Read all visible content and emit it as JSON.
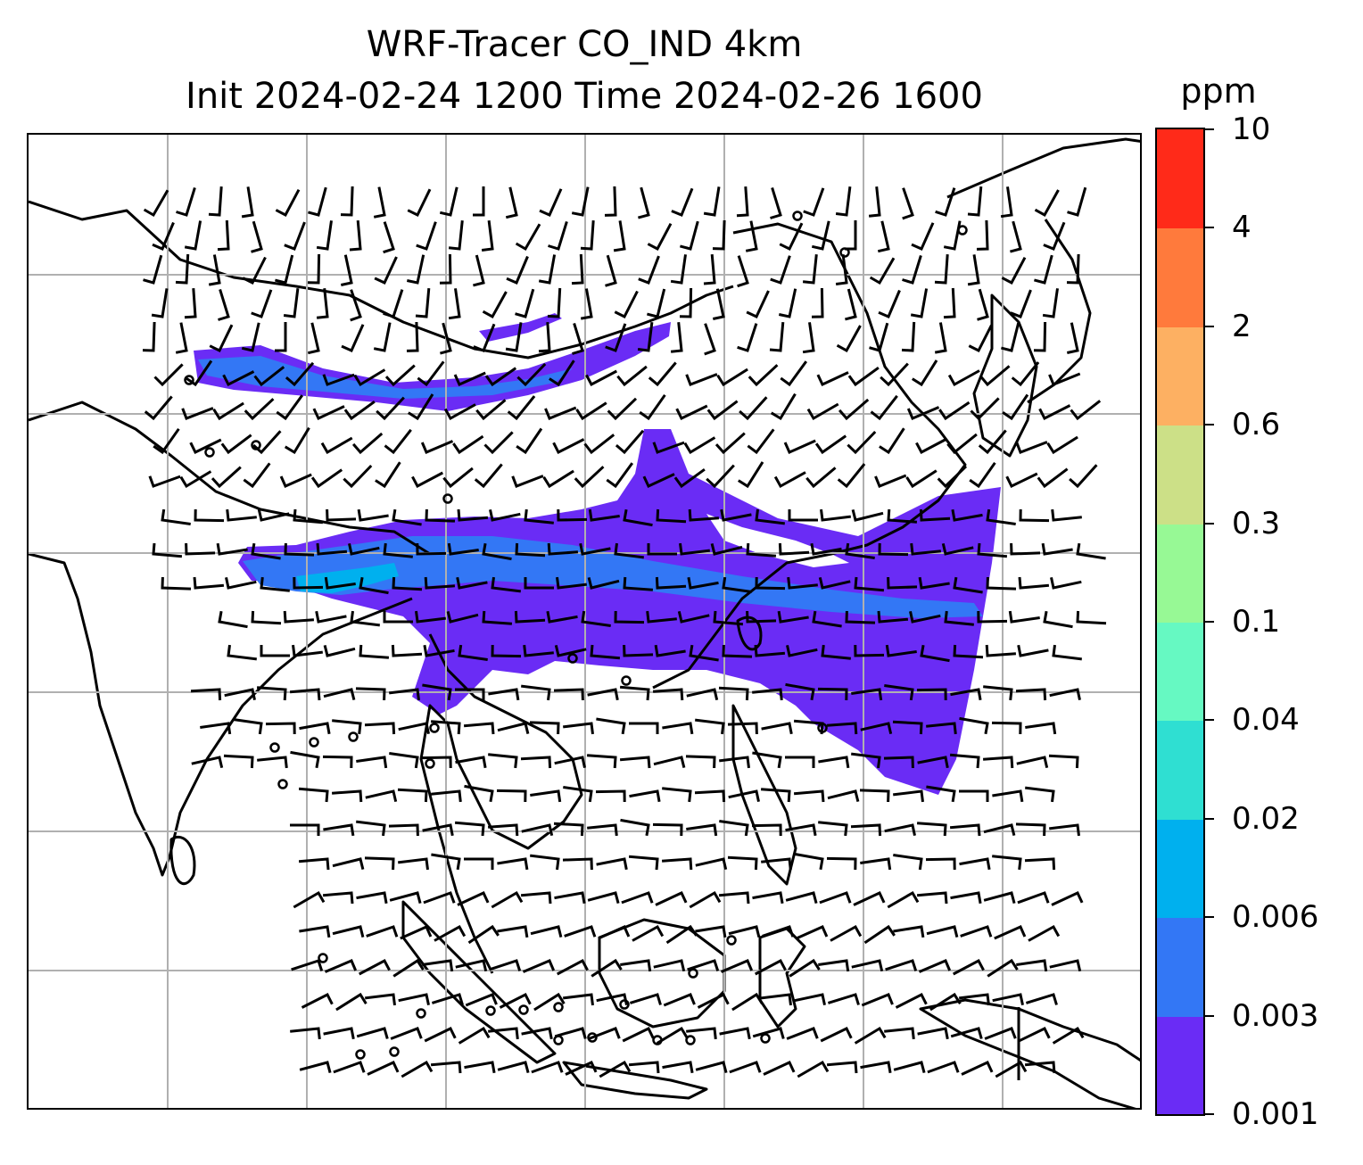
{
  "title": {
    "line1": "WRF-Tracer CO_IND 4km",
    "line2": "Init 2024-02-24 1200 Time 2024-02-26 1600"
  },
  "map": {
    "region": "South and Southeast Asia",
    "features": [
      "coastlines",
      "lat-lon gridlines",
      "wind barbs",
      "tracer concentration filled contours"
    ],
    "gridline_color": "#b0b0b0",
    "coastline_color": "#000000",
    "wind_barb_color": "#000000"
  },
  "colorbar": {
    "unit": "ppm",
    "tick_labels": [
      "0.001",
      "0.003",
      "0.006",
      "0.02",
      "0.04",
      "0.1",
      "0.3",
      "0.6",
      "2",
      "4",
      "10"
    ],
    "colors": [
      "#6a2cf5",
      "#3377f5",
      "#00b0ee",
      "#2fdfd2",
      "#66f9c2",
      "#97f995",
      "#cce087",
      "#fdb062",
      "#ff7a3c",
      "#ff2a19"
    ]
  }
}
